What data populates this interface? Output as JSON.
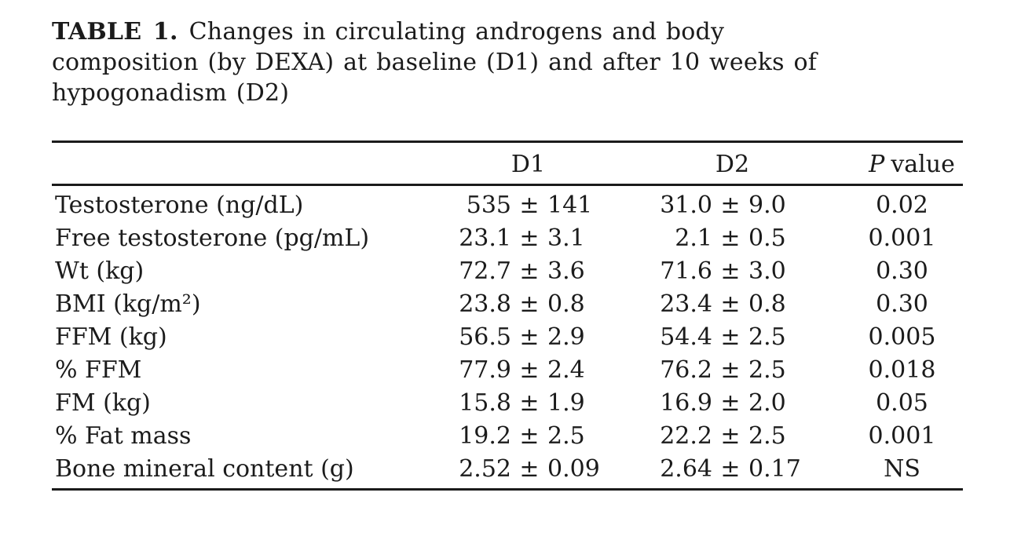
{
  "title": {
    "label": "TABLE 1.",
    "line1_rest": "Changes in circulating androgens and body",
    "line2": "composition (by DEXA) at baseline (D1) and after 10 weeks of",
    "line3": "hypogonadism (D2)"
  },
  "table": {
    "pm": "±",
    "header": {
      "d1": "D1",
      "d2": "D2",
      "p_italic": "P",
      "p_rest": "value"
    },
    "rows": [
      {
        "label": "Testosterone (ng/dL)",
        "d1_mean": "535",
        "d1_sd": "141",
        "d2_mean": "31.0",
        "d2_sd": "9.0",
        "p": "0.02"
      },
      {
        "label": "Free testosterone (pg/mL)",
        "d1_mean": "23.1",
        "d1_sd": "3.1",
        "d2_mean": "2.1",
        "d2_sd": "0.5",
        "p": "0.001"
      },
      {
        "label": "Wt (kg)",
        "d1_mean": "72.7",
        "d1_sd": "3.6",
        "d2_mean": "71.6",
        "d2_sd": "3.0",
        "p": "0.30"
      },
      {
        "label": "BMI (kg/m²)",
        "d1_mean": "23.8",
        "d1_sd": "0.8",
        "d2_mean": "23.4",
        "d2_sd": "0.8",
        "p": "0.30"
      },
      {
        "label": "FFM (kg)",
        "d1_mean": "56.5",
        "d1_sd": "2.9",
        "d2_mean": "54.4",
        "d2_sd": "2.5",
        "p": "0.005"
      },
      {
        "label": "% FFM",
        "d1_mean": "77.9",
        "d1_sd": "2.4",
        "d2_mean": "76.2",
        "d2_sd": "2.5",
        "p": "0.018"
      },
      {
        "label": "FM (kg)",
        "d1_mean": "15.8",
        "d1_sd": "1.9",
        "d2_mean": "16.9",
        "d2_sd": "2.0",
        "p": "0.05"
      },
      {
        "label": "% Fat mass",
        "d1_mean": "19.2",
        "d1_sd": "2.5",
        "d2_mean": "22.2",
        "d2_sd": "2.5",
        "p": "0.001"
      },
      {
        "label": "Bone mineral content (g)",
        "d1_mean": "2.52",
        "d1_sd": "0.09",
        "d2_mean": "2.64",
        "d2_sd": "0.17",
        "p": "NS"
      }
    ]
  },
  "colors": {
    "background": "#ffffff",
    "text": "#1b1b1b",
    "rule": "#1b1b1b"
  }
}
